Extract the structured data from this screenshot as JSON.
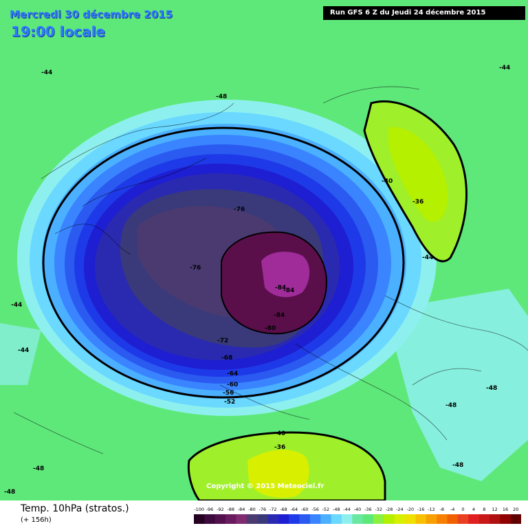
{
  "header": {
    "date": "Mercredi 30 décembre 2015",
    "time": "19:00 locale",
    "run": "Run GFS 6 Z du Jeudi 24 décembre 2015"
  },
  "map": {
    "copyright": "Copyright © 2015 Meteociel.fr",
    "labels": [
      "-44",
      "-48",
      "-44",
      "-40",
      "-36",
      "-44",
      "-76",
      "-76",
      "-84",
      "-84",
      "-84",
      "-80",
      "-72",
      "-68",
      "-64",
      "-60",
      "-56",
      "-52",
      "-44",
      "-44",
      "-48",
      "-48",
      "-40",
      "-36",
      "-48",
      "-48",
      "-48"
    ],
    "colors": {
      "background": "#5fe87a",
      "cold_core": "#5a0f4a",
      "warm_patch": "#9ff02a"
    }
  },
  "footer": {
    "title": "Temp. 10hPa (stratos.)",
    "subtitle": "(+ 156h)",
    "scale_labels": [
      "-100",
      "-96",
      "-92",
      "-88",
      "-84",
      "-80",
      "-76",
      "-72",
      "-68",
      "-64",
      "-60",
      "-56",
      "-52",
      "-48",
      "-44",
      "-40",
      "-36",
      "-32",
      "-28",
      "-24",
      "-20",
      "-16",
      "-12",
      "-8",
      "-4",
      "0",
      "4",
      "8",
      "12",
      "16",
      "20"
    ],
    "scale_colors": [
      "#240022",
      "#3c0a3c",
      "#52104c",
      "#6a1a5e",
      "#802a70",
      "#4a3a70",
      "#3a3a7a",
      "#2a2ab0",
      "#1e1ed2",
      "#1e3ae8",
      "#2a5af0",
      "#3a84ff",
      "#4ab0ff",
      "#6ad8ff",
      "#8ef0ee",
      "#6ae8a0",
      "#5fe87a",
      "#8cf040",
      "#b4f000",
      "#d8f000",
      "#f0e000",
      "#f8c000",
      "#f8a000",
      "#f88000",
      "#f06000",
      "#e84020",
      "#e02020",
      "#c81818",
      "#b01010",
      "#900000",
      "#600000"
    ]
  }
}
